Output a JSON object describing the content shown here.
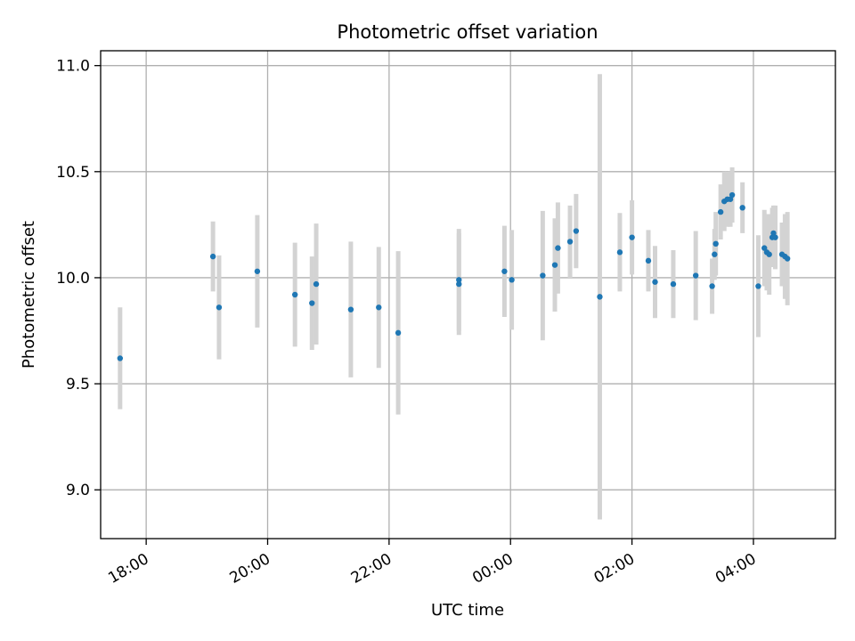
{
  "chart_data": {
    "type": "scatter",
    "title": "Photometric offset variation",
    "xlabel": "UTC time",
    "ylabel": "Photometric offset",
    "x_unit": "hours since 00:00 UTC",
    "xlim": [
      -6.75,
      5.35
    ],
    "ylim": [
      8.77,
      11.07
    ],
    "x_ticks": [
      -6,
      -4,
      -2,
      0,
      2,
      4
    ],
    "x_tick_labels": [
      "18:00",
      "20:00",
      "22:00",
      "00:00",
      "02:00",
      "04:00"
    ],
    "y_ticks": [
      9.0,
      9.5,
      10.0,
      10.5,
      11.0
    ],
    "y_tick_labels": [
      "9.0",
      "9.5",
      "10.0",
      "10.5",
      "11.0"
    ],
    "grid": true,
    "marker_color": "#1f77b4",
    "errorbar_color": "#d3d3d3",
    "points": [
      {
        "x": -6.43,
        "y": 9.62,
        "err": 0.24
      },
      {
        "x": -4.9,
        "y": 10.1,
        "err": 0.165
      },
      {
        "x": -4.8,
        "y": 9.86,
        "err": 0.245
      },
      {
        "x": -4.17,
        "y": 10.03,
        "err": 0.265
      },
      {
        "x": -3.55,
        "y": 9.92,
        "err": 0.245
      },
      {
        "x": -3.27,
        "y": 9.88,
        "err": 0.22
      },
      {
        "x": -3.2,
        "y": 9.97,
        "err": 0.285
      },
      {
        "x": -2.63,
        "y": 9.85,
        "err": 0.32
      },
      {
        "x": -2.17,
        "y": 9.86,
        "err": 0.285
      },
      {
        "x": -1.85,
        "y": 9.74,
        "err": 0.385
      },
      {
        "x": -0.85,
        "y": 9.97,
        "err": 0.24
      },
      {
        "x": -0.85,
        "y": 9.99,
        "err": 0.24
      },
      {
        "x": -0.1,
        "y": 10.03,
        "err": 0.215
      },
      {
        "x": 0.02,
        "y": 9.99,
        "err": 0.235
      },
      {
        "x": 0.53,
        "y": 10.01,
        "err": 0.305
      },
      {
        "x": 0.73,
        "y": 10.06,
        "err": 0.22
      },
      {
        "x": 0.78,
        "y": 10.14,
        "err": 0.215
      },
      {
        "x": 0.98,
        "y": 10.17,
        "err": 0.17
      },
      {
        "x": 1.08,
        "y": 10.22,
        "err": 0.175
      },
      {
        "x": 1.47,
        "y": 9.91,
        "err": 1.05
      },
      {
        "x": 1.8,
        "y": 10.12,
        "err": 0.185
      },
      {
        "x": 2.0,
        "y": 10.19,
        "err": 0.175
      },
      {
        "x": 2.27,
        "y": 10.08,
        "err": 0.145
      },
      {
        "x": 2.38,
        "y": 9.98,
        "err": 0.17
      },
      {
        "x": 2.68,
        "y": 9.97,
        "err": 0.16
      },
      {
        "x": 3.05,
        "y": 10.01,
        "err": 0.21
      },
      {
        "x": 3.32,
        "y": 9.96,
        "err": 0.13
      },
      {
        "x": 3.36,
        "y": 10.11,
        "err": 0.12
      },
      {
        "x": 3.38,
        "y": 10.16,
        "err": 0.15
      },
      {
        "x": 3.46,
        "y": 10.31,
        "err": 0.13
      },
      {
        "x": 3.52,
        "y": 10.36,
        "err": 0.14
      },
      {
        "x": 3.57,
        "y": 10.37,
        "err": 0.13
      },
      {
        "x": 3.62,
        "y": 10.37,
        "err": 0.13
      },
      {
        "x": 3.65,
        "y": 10.39,
        "err": 0.13
      },
      {
        "x": 3.82,
        "y": 10.33,
        "err": 0.12
      },
      {
        "x": 4.08,
        "y": 9.96,
        "err": 0.24
      },
      {
        "x": 4.18,
        "y": 10.14,
        "err": 0.18
      },
      {
        "x": 4.22,
        "y": 10.12,
        "err": 0.18
      },
      {
        "x": 4.26,
        "y": 10.11,
        "err": 0.19
      },
      {
        "x": 4.31,
        "y": 10.19,
        "err": 0.14
      },
      {
        "x": 4.33,
        "y": 10.21,
        "err": 0.13
      },
      {
        "x": 4.36,
        "y": 10.19,
        "err": 0.15
      },
      {
        "x": 4.47,
        "y": 10.11,
        "err": 0.15
      },
      {
        "x": 4.52,
        "y": 10.1,
        "err": 0.2
      },
      {
        "x": 4.56,
        "y": 10.09,
        "err": 0.22
      }
    ]
  }
}
